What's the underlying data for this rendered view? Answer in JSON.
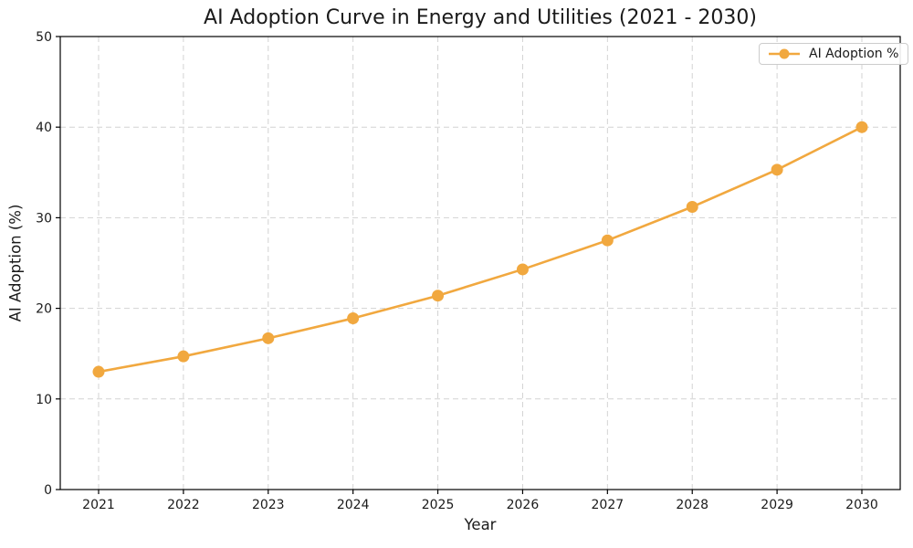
{
  "chart_data": {
    "type": "line",
    "title": "AI Adoption Curve in Energy and Utilities (2021 - 2030)",
    "xlabel": "Year",
    "ylabel": "AI Adoption (%)",
    "categories": [
      "2021",
      "2022",
      "2023",
      "2024",
      "2025",
      "2026",
      "2027",
      "2028",
      "2029",
      "2030"
    ],
    "series": [
      {
        "name": "AI Adoption %",
        "values": [
          13.0,
          14.7,
          16.7,
          18.9,
          21.4,
          24.3,
          27.5,
          31.2,
          35.3,
          40.0
        ],
        "color": "#F1A83F",
        "marker": "circle"
      }
    ],
    "ylim": [
      0,
      50
    ],
    "yticks": [
      0,
      10,
      20,
      30,
      40,
      50
    ],
    "grid": true,
    "grid_style": "dashed",
    "legend_position": "upper-right"
  },
  "style": {
    "line_color": "#F1A83F",
    "grid_color": "#d3d3d3",
    "spine_color": "#000000",
    "tick_text_color": "#1a1a1a",
    "background": "#ffffff",
    "legend_border": "#cccccc"
  }
}
